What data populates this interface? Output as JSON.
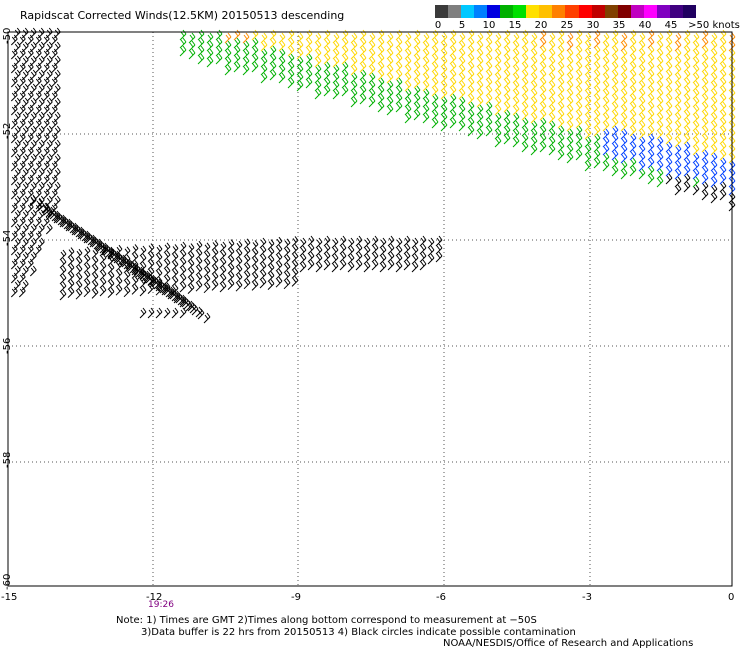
{
  "title": "Rapidscat Corrected Winds(12.5KM) 20150513 descending",
  "legend": {
    "labels": [
      "0",
      "5",
      "10",
      "15",
      "20",
      "25",
      "30",
      "35",
      "40",
      "45",
      ">50 knots"
    ],
    "colors": [
      "#3a3a3a",
      "#7f7f7f",
      "#00c8ff",
      "#0080ff",
      "#0000e0",
      "#00b000",
      "#00e000",
      "#ffe000",
      "#ffc000",
      "#ff8000",
      "#ff4000",
      "#ff0000",
      "#c00000",
      "#804000",
      "#800000",
      "#c000c0",
      "#ff00ff",
      "#8000c0",
      "#400080",
      "#200060"
    ]
  },
  "axes": {
    "x_ticks": [
      "-15",
      "-12",
      "-9",
      "-6",
      "-3",
      "0"
    ],
    "y_ticks": [
      "-50",
      "-52",
      "-54",
      "-56",
      "-58",
      "-60"
    ]
  },
  "time_label": "19:26",
  "notes": {
    "line1": "Note: 1) Times are GMT 2)Times along bottom correspond to measurement at −50S",
    "line2": "3)Data buffer is 22 hrs from 20150513 4) Black circles indicate possible contamination",
    "line3": "NOAA/NESDIS/Office of Research and Applications"
  },
  "map": {
    "lon_range": [
      -15,
      0
    ],
    "lat_range": [
      -60,
      -50
    ]
  }
}
